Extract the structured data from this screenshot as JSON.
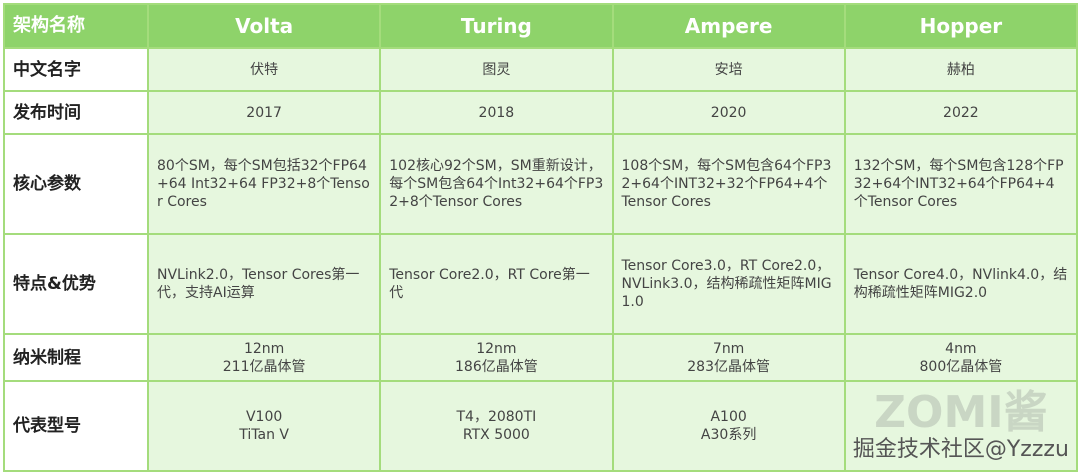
{
  "header": {
    "label": "架构名称",
    "columns": [
      "Volta",
      "Turing",
      "Ampere",
      "Hopper"
    ]
  },
  "rows": [
    {
      "label": "中文名字",
      "cells": [
        "伏特",
        "图灵",
        "安培",
        "赫柏"
      ]
    },
    {
      "label": "发布时间",
      "cells": [
        "2017",
        "2018",
        "2020",
        "2022"
      ]
    },
    {
      "label": "核心参数",
      "cells": [
        "80个SM，每个SM包括32个FP64+64 Int32+64 FP32+8个Tensor Cores",
        "102核心92个SM，SM重新设计，每个SM包含64个Int32+64个FP32+8个Tensor Cores",
        "108个SM，每个SM包含64个FP32+64个INT32+32个FP64+4个Tensor Cores",
        "132个SM，每个SM包含128个FP32+64个INT32+64个FP64+4个Tensor Cores"
      ]
    },
    {
      "label": "特点&优势",
      "cells": [
        "NVLink2.0，Tensor Cores第一代，支持AI运算",
        "Tensor Core2.0，RT Core第一代",
        "Tensor Core3.0，RT Core2.0，NVLink3.0，结构稀疏性矩阵MIG1.0",
        "Tensor Core4.0，NVlink4.0，结构稀疏性矩阵MIG2.0"
      ]
    },
    {
      "label": "纳米制程",
      "cells": [
        [
          "12nm",
          "211亿晶体管"
        ],
        [
          "12nm",
          "186亿晶体管"
        ],
        [
          "7nm",
          "283亿晶体管"
        ],
        [
          "4nm",
          "800亿晶体管"
        ]
      ]
    },
    {
      "label": "代表型号",
      "cells": [
        [
          "V100",
          "TiTan V"
        ],
        [
          "T4，2080TI",
          "RTX 5000"
        ],
        [
          "A100",
          "A30系列"
        ],
        [
          "",
          ""
        ]
      ]
    }
  ],
  "watermark": {
    "text": "掘金技术社区@Yzzzu",
    "logo": "ZOMI酱"
  }
}
